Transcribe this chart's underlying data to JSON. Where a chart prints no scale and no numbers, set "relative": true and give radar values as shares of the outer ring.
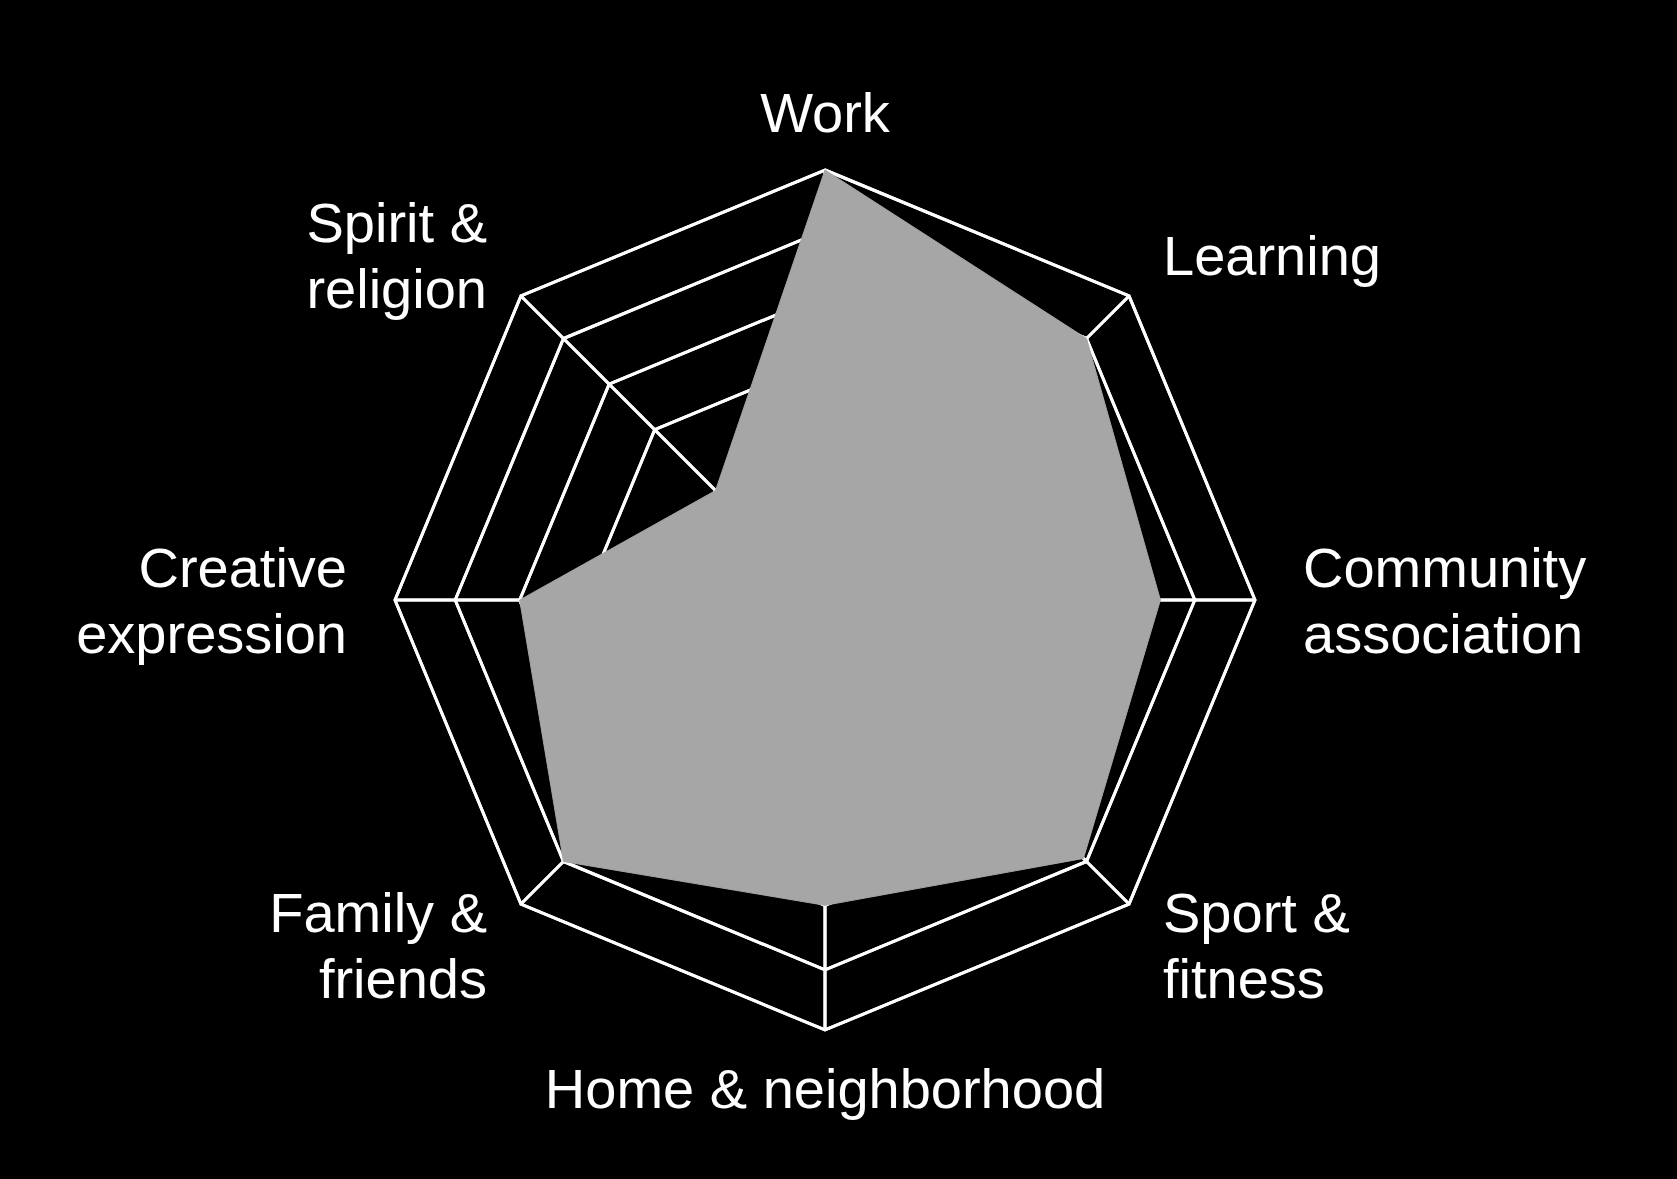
{
  "chart_data": {
    "type": "radar",
    "relative": true,
    "categories": [
      "Work",
      "Learning",
      "Community association",
      "Sport & fitness",
      "Home & neighborhood",
      "Family & friends",
      "Creative expression",
      "Spirit & religion"
    ],
    "series": [
      {
        "color": "#a6a6a6",
        "values": [
          1,
          0.86,
          0.78,
          0.85,
          0.71,
          0.86,
          0.71,
          0.36
        ]
      }
    ]
  }
}
